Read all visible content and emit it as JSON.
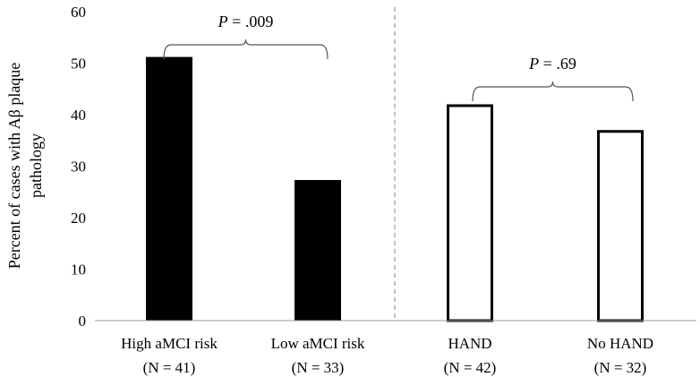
{
  "chart_data": {
    "type": "bar",
    "ylabel_lines": [
      "Percent of cases with Aβ plaque",
      "pathology"
    ],
    "ylim": [
      0,
      60
    ],
    "yticks": [
      "0",
      "10",
      "20",
      "30",
      "40",
      "50",
      "60"
    ],
    "grid": false,
    "bars": [
      {
        "category": "High aMCI risk",
        "n_label": "(N = 41)",
        "value": 51.2,
        "filled": true
      },
      {
        "category": "Low aMCI risk",
        "n_label": "(N = 33)",
        "value": 27.3,
        "filled": true
      },
      {
        "category": "HAND",
        "n_label": "(N = 42)",
        "value": 42.0,
        "filled": false
      },
      {
        "category": "No HAND",
        "n_label": "(N = 32)",
        "value": 37.0,
        "filled": false
      }
    ],
    "comparisons": [
      {
        "p_symbol": "P",
        "p_rest": " = .009",
        "bars": [
          0,
          1
        ]
      },
      {
        "p_symbol": "P",
        "p_rest": " = .69",
        "bars": [
          2,
          3
        ]
      }
    ],
    "divider": "dashed vertical line between group 2 and group 3",
    "colors": {
      "filled": "#000000",
      "outline": "#000000",
      "axis": "#000000",
      "divider": "#888888"
    }
  }
}
